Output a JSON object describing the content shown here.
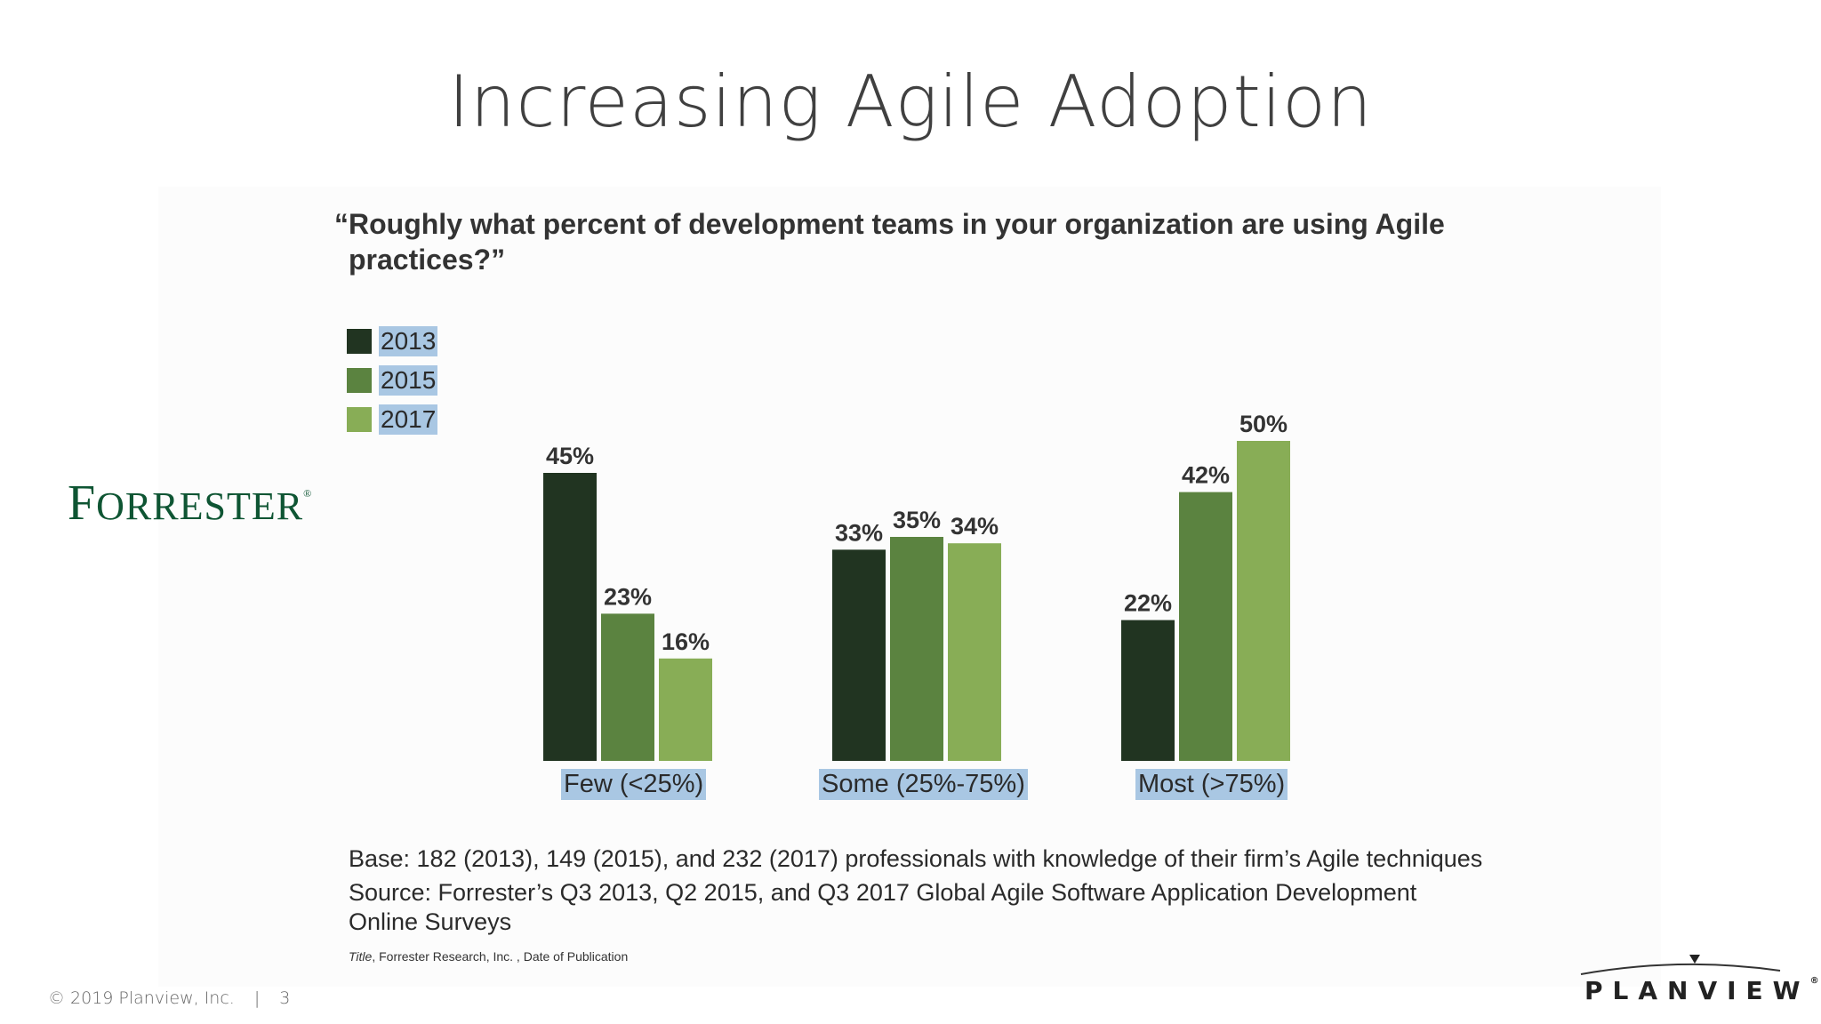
{
  "slide": {
    "title": "Increasing Agile Adoption",
    "brand": "FORRESTER",
    "footer": {
      "copyright": "© 2019 Planview, Inc.",
      "separator": "|",
      "page_number": "3",
      "logo_text": "PLANVIEW"
    },
    "base_note": "Base: 182 (2013), 149 (2015), and 232 (2017) professionals with knowledge of their firm’s Agile techniques",
    "source_note": "Source: Forrester’s Q3 2013, Q2 2015, and Q3 2017 Global Agile Software Application Development Online Surveys",
    "pub_note_title": "Title",
    "pub_note_rest": ", Forrester Research, Inc. , Date of Publication"
  },
  "chart_data": {
    "type": "bar",
    "title": "“Roughly what percent of development teams in your organization are using Agile practices?”",
    "categories": [
      "Few (<25%)",
      "Some (25%-75%)",
      "Most (>75%)"
    ],
    "series": [
      {
        "name": "2013",
        "values": [
          45,
          33,
          22
        ],
        "labels": [
          "45%",
          "33%",
          "22%"
        ],
        "color": "#213421"
      },
      {
        "name": "2015",
        "values": [
          23,
          35,
          42
        ],
        "labels": [
          "23%",
          "35%",
          "42%"
        ],
        "color": "#5b8340"
      },
      {
        "name": "2017",
        "values": [
          16,
          34,
          50
        ],
        "labels": [
          "16%",
          "34%",
          "50%"
        ],
        "color": "#88ad56"
      }
    ],
    "xlabel": "",
    "ylabel": "",
    "ylim": [
      0,
      60
    ],
    "grid": false,
    "legend": "top-left"
  }
}
